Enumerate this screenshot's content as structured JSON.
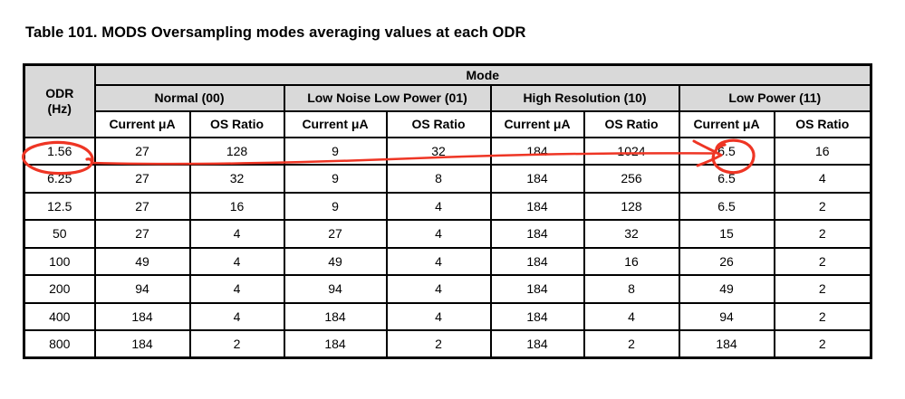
{
  "title": "Table 101. MODS Oversampling modes averaging values at each ODR",
  "table": {
    "odr_header": {
      "line1": "ODR",
      "line2": "(Hz)"
    },
    "mode_header": "Mode",
    "groups": [
      {
        "label": "Normal (00)"
      },
      {
        "label": "Low Noise Low Power (01)"
      },
      {
        "label": "High Resolution (10)"
      },
      {
        "label": "Low Power (11)"
      }
    ],
    "col_headers": [
      "Current μA",
      "OS Ratio",
      "Current μA",
      "OS Ratio",
      "Current μA",
      "OS Ratio",
      "Current μA",
      "OS Ratio"
    ],
    "rows": [
      {
        "odr": "1.56",
        "values": [
          "27",
          "128",
          "9",
          "32",
          "184",
          "1024",
          "6.5",
          "16"
        ]
      },
      {
        "odr": "6.25",
        "values": [
          "27",
          "32",
          "9",
          "8",
          "184",
          "256",
          "6.5",
          "4"
        ]
      },
      {
        "odr": "12.5",
        "values": [
          "27",
          "16",
          "9",
          "4",
          "184",
          "128",
          "6.5",
          "2"
        ]
      },
      {
        "odr": "50",
        "values": [
          "27",
          "4",
          "27",
          "4",
          "184",
          "32",
          "15",
          "2"
        ]
      },
      {
        "odr": "100",
        "values": [
          "49",
          "4",
          "49",
          "4",
          "184",
          "16",
          "26",
          "2"
        ]
      },
      {
        "odr": "200",
        "values": [
          "94",
          "4",
          "94",
          "4",
          "184",
          "8",
          "49",
          "2"
        ]
      },
      {
        "odr": "400",
        "values": [
          "184",
          "4",
          "184",
          "4",
          "184",
          "4",
          "94",
          "2"
        ]
      },
      {
        "odr": "800",
        "values": [
          "184",
          "2",
          "184",
          "2",
          "184",
          "2",
          "184",
          "2"
        ]
      }
    ]
  },
  "annotation": {
    "color": "#ee3524",
    "circled_odr": "1.56",
    "circled_value": "6.5"
  },
  "colors": {
    "header_bg": "#d9d9d9",
    "border": "#000000",
    "text": "#000000",
    "page_bg": "#ffffff"
  }
}
